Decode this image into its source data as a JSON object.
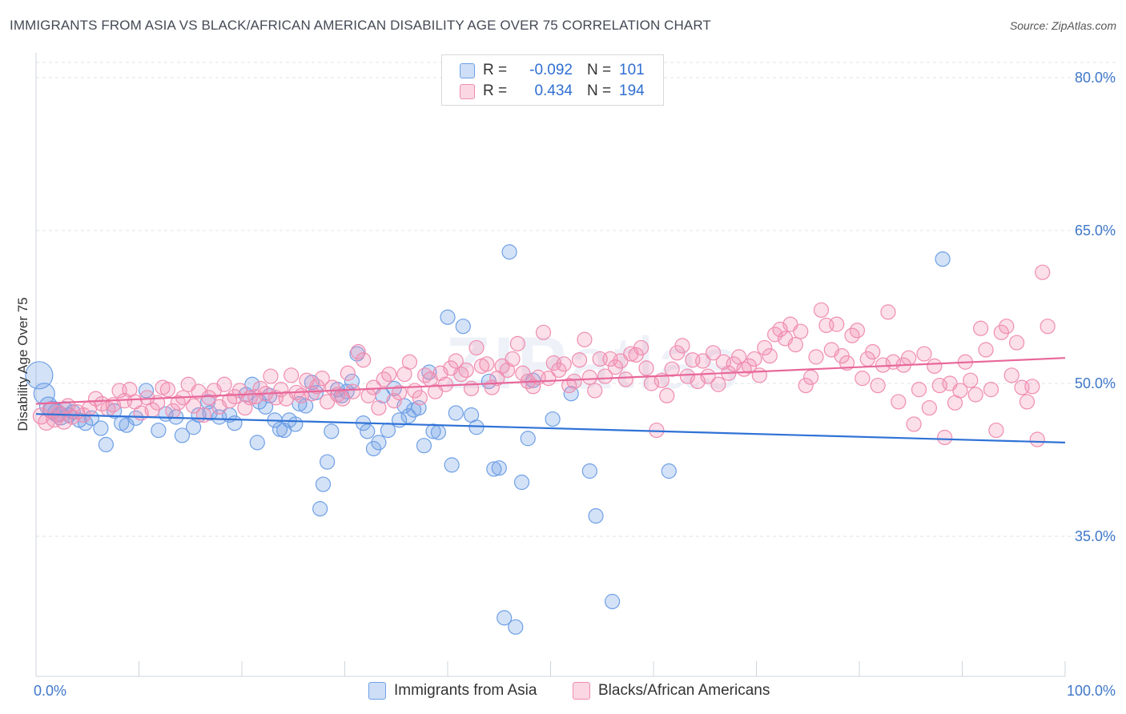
{
  "title": "IMMIGRANTS FROM ASIA VS BLACK/AFRICAN AMERICAN DISABILITY AGE OVER 75 CORRELATION CHART",
  "source": "Source: ZipAtlas.com",
  "watermark": {
    "zip": "ZIP",
    "atlas": "atlas"
  },
  "stats": {
    "r_label": "R =",
    "n_label": "N =",
    "rows": [
      {
        "r": "-0.092",
        "n": "101",
        "color": "#6fa0e6"
      },
      {
        "r": "0.434",
        "n": "194",
        "color": "#f08db0"
      }
    ]
  },
  "legend": [
    {
      "label": "Immigrants from Asia",
      "color": "#6fa0e6"
    },
    {
      "label": "Blacks/African Americans",
      "color": "#f08db0"
    }
  ],
  "chart_data": {
    "type": "scatter",
    "xlabel": "",
    "ylabel": "Disability Age Over 75",
    "xlim": [
      0,
      100
    ],
    "ylim": [
      20,
      82
    ],
    "x_tick_labels": [
      "0.0%",
      "100.0%"
    ],
    "y_ticks": [
      35,
      50,
      65,
      80
    ],
    "y_tick_labels": [
      "35.0%",
      "50.0%",
      "65.0%",
      "80.0%"
    ],
    "grid": "horizontal dashed",
    "series": [
      {
        "name": "Immigrants from Asia",
        "color": "#6fa0e6",
        "trend": [
          [
            0,
            47.0
          ],
          [
            100,
            44.2
          ]
        ],
        "points": [
          [
            0.3,
            50.8
          ],
          [
            0.8,
            49.0
          ],
          [
            1.2,
            47.8
          ],
          [
            1.6,
            47.4
          ],
          [
            2.0,
            47.1
          ],
          [
            2.4,
            46.8
          ],
          [
            2.8,
            47.5
          ],
          [
            3.2,
            46.9
          ],
          [
            3.6,
            47.2
          ],
          [
            4.2,
            46.4
          ],
          [
            4.8,
            46.1
          ],
          [
            5.4,
            46.6
          ],
          [
            6.3,
            45.6
          ],
          [
            6.8,
            44.0
          ],
          [
            7.6,
            47.3
          ],
          [
            8.3,
            46.1
          ],
          [
            8.8,
            45.9
          ],
          [
            9.7,
            46.6
          ],
          [
            10.7,
            49.3
          ],
          [
            11.9,
            45.4
          ],
          [
            12.6,
            47.0
          ],
          [
            13.6,
            46.7
          ],
          [
            14.2,
            44.9
          ],
          [
            15.3,
            45.7
          ],
          [
            15.8,
            46.9
          ],
          [
            16.7,
            48.2
          ],
          [
            16.9,
            47.1
          ],
          [
            17.8,
            46.7
          ],
          [
            18.8,
            46.9
          ],
          [
            19.3,
            46.1
          ],
          [
            20.4,
            48.9
          ],
          [
            21.0,
            49.9
          ],
          [
            21.5,
            44.2
          ],
          [
            21.7,
            48.2
          ],
          [
            22.3,
            47.7
          ],
          [
            22.7,
            48.8
          ],
          [
            23.2,
            46.4
          ],
          [
            23.7,
            45.5
          ],
          [
            24.1,
            45.4
          ],
          [
            24.6,
            46.4
          ],
          [
            25.2,
            46.0
          ],
          [
            25.6,
            48.0
          ],
          [
            26.2,
            47.8
          ],
          [
            26.8,
            50.1
          ],
          [
            27.2,
            49.1
          ],
          [
            27.6,
            37.7
          ],
          [
            27.9,
            40.1
          ],
          [
            28.3,
            42.3
          ],
          [
            28.7,
            45.3
          ],
          [
            29.3,
            49.4
          ],
          [
            29.7,
            48.8
          ],
          [
            30.2,
            49.2
          ],
          [
            30.7,
            50.2
          ],
          [
            31.2,
            52.9
          ],
          [
            31.8,
            46.1
          ],
          [
            32.2,
            45.3
          ],
          [
            32.8,
            43.6
          ],
          [
            33.3,
            44.2
          ],
          [
            33.7,
            48.8
          ],
          [
            34.2,
            45.4
          ],
          [
            34.8,
            49.5
          ],
          [
            35.3,
            46.4
          ],
          [
            35.8,
            47.8
          ],
          [
            36.2,
            46.8
          ],
          [
            36.7,
            47.4
          ],
          [
            37.2,
            47.6
          ],
          [
            37.7,
            43.9
          ],
          [
            38.2,
            51.1
          ],
          [
            38.6,
            45.3
          ],
          [
            39.1,
            45.2
          ],
          [
            40.0,
            56.5
          ],
          [
            40.4,
            42.0
          ],
          [
            40.8,
            47.1
          ],
          [
            41.5,
            55.6
          ],
          [
            42.3,
            46.9
          ],
          [
            42.8,
            45.7
          ],
          [
            44.0,
            50.2
          ],
          [
            44.5,
            41.6
          ],
          [
            45.0,
            41.7
          ],
          [
            45.5,
            27.0
          ],
          [
            46.0,
            62.9
          ],
          [
            46.6,
            26.1
          ],
          [
            47.2,
            40.3
          ],
          [
            47.8,
            44.6
          ],
          [
            48.3,
            50.3
          ],
          [
            50.2,
            46.5
          ],
          [
            52.0,
            49.0
          ],
          [
            53.8,
            41.4
          ],
          [
            54.4,
            37.0
          ],
          [
            56.0,
            28.6
          ],
          [
            61.5,
            41.4
          ],
          [
            88.1,
            62.2
          ]
        ]
      },
      {
        "name": "Blacks/African Americans",
        "color": "#f08db0",
        "trend": [
          [
            0,
            48.0
          ],
          [
            100,
            52.5
          ]
        ],
        "points": [
          [
            0.5,
            46.8
          ],
          [
            1.0,
            46.2
          ],
          [
            1.4,
            47.4
          ],
          [
            1.8,
            46.5
          ],
          [
            2.2,
            47.0
          ],
          [
            2.7,
            46.3
          ],
          [
            3.1,
            47.8
          ],
          [
            3.5,
            46.7
          ],
          [
            4.0,
            47.2
          ],
          [
            4.6,
            46.9
          ],
          [
            5.2,
            47.6
          ],
          [
            5.8,
            48.5
          ],
          [
            6.4,
            48.0
          ],
          [
            7.0,
            47.5
          ],
          [
            7.5,
            47.9
          ],
          [
            8.1,
            49.3
          ],
          [
            8.6,
            48.3
          ],
          [
            9.1,
            49.4
          ],
          [
            9.6,
            48.2
          ],
          [
            10.2,
            47.1
          ],
          [
            10.8,
            48.6
          ],
          [
            11.3,
            47.4
          ],
          [
            11.8,
            48.1
          ],
          [
            12.3,
            49.6
          ],
          [
            12.8,
            49.4
          ],
          [
            13.3,
            47.3
          ],
          [
            13.8,
            48.1
          ],
          [
            14.3,
            48.6
          ],
          [
            14.8,
            49.9
          ],
          [
            15.3,
            47.8
          ],
          [
            15.8,
            49.2
          ],
          [
            16.3,
            46.9
          ],
          [
            16.8,
            48.6
          ],
          [
            17.3,
            49.3
          ],
          [
            17.8,
            47.7
          ],
          [
            18.3,
            49.9
          ],
          [
            18.8,
            48.3
          ],
          [
            19.3,
            48.7
          ],
          [
            19.8,
            49.3
          ],
          [
            20.3,
            47.6
          ],
          [
            20.8,
            48.6
          ],
          [
            21.3,
            48.7
          ],
          [
            21.8,
            49.5
          ],
          [
            22.3,
            49.0
          ],
          [
            22.8,
            50.7
          ],
          [
            23.3,
            48.6
          ],
          [
            23.8,
            49.4
          ],
          [
            24.3,
            48.5
          ],
          [
            24.8,
            50.8
          ],
          [
            25.3,
            49.1
          ],
          [
            25.8,
            48.8
          ],
          [
            26.3,
            50.3
          ],
          [
            26.8,
            49.0
          ],
          [
            27.3,
            49.7
          ],
          [
            27.8,
            50.5
          ],
          [
            28.3,
            48.2
          ],
          [
            28.8,
            49.6
          ],
          [
            29.3,
            48.9
          ],
          [
            29.8,
            48.5
          ],
          [
            30.3,
            51.0
          ],
          [
            30.8,
            49.2
          ],
          [
            31.3,
            53.1
          ],
          [
            31.8,
            52.3
          ],
          [
            32.3,
            48.8
          ],
          [
            32.8,
            49.6
          ],
          [
            33.3,
            47.6
          ],
          [
            33.8,
            50.4
          ],
          [
            34.3,
            50.9
          ],
          [
            34.8,
            48.3
          ],
          [
            35.3,
            49.1
          ],
          [
            35.8,
            50.9
          ],
          [
            36.3,
            52.1
          ],
          [
            36.8,
            49.3
          ],
          [
            37.3,
            48.6
          ],
          [
            37.8,
            50.8
          ],
          [
            38.3,
            50.4
          ],
          [
            38.8,
            49.2
          ],
          [
            39.3,
            51.0
          ],
          [
            39.8,
            49.9
          ],
          [
            40.3,
            51.5
          ],
          [
            40.8,
            52.2
          ],
          [
            41.3,
            50.9
          ],
          [
            41.8,
            51.3
          ],
          [
            42.3,
            49.5
          ],
          [
            42.8,
            53.5
          ],
          [
            43.3,
            51.7
          ],
          [
            43.8,
            51.9
          ],
          [
            44.3,
            49.6
          ],
          [
            44.8,
            50.5
          ],
          [
            45.3,
            51.7
          ],
          [
            45.8,
            51.3
          ],
          [
            46.3,
            52.4
          ],
          [
            46.8,
            53.9
          ],
          [
            47.3,
            51.0
          ],
          [
            47.8,
            50.2
          ],
          [
            48.3,
            49.7
          ],
          [
            48.8,
            50.6
          ],
          [
            49.3,
            55.0
          ],
          [
            49.8,
            50.5
          ],
          [
            50.3,
            52.0
          ],
          [
            50.8,
            51.3
          ],
          [
            51.3,
            51.9
          ],
          [
            51.8,
            49.8
          ],
          [
            52.3,
            50.2
          ],
          [
            52.8,
            52.3
          ],
          [
            53.3,
            54.3
          ],
          [
            53.8,
            50.6
          ],
          [
            54.3,
            49.3
          ],
          [
            54.8,
            52.4
          ],
          [
            55.3,
            50.7
          ],
          [
            55.8,
            52.4
          ],
          [
            56.3,
            51.6
          ],
          [
            56.8,
            52.2
          ],
          [
            57.3,
            50.4
          ],
          [
            57.8,
            52.9
          ],
          [
            58.3,
            52.8
          ],
          [
            58.8,
            53.5
          ],
          [
            59.3,
            51.5
          ],
          [
            59.8,
            50.0
          ],
          [
            60.3,
            45.4
          ],
          [
            60.8,
            50.3
          ],
          [
            61.3,
            48.8
          ],
          [
            61.8,
            51.4
          ],
          [
            62.3,
            53.0
          ],
          [
            62.8,
            53.7
          ],
          [
            63.3,
            50.7
          ],
          [
            63.8,
            52.3
          ],
          [
            64.3,
            50.2
          ],
          [
            64.8,
            52.2
          ],
          [
            65.3,
            50.7
          ],
          [
            65.8,
            53.0
          ],
          [
            66.3,
            49.9
          ],
          [
            66.8,
            52.1
          ],
          [
            67.3,
            51.0
          ],
          [
            67.8,
            51.9
          ],
          [
            68.3,
            52.6
          ],
          [
            68.8,
            51.4
          ],
          [
            69.3,
            51.7
          ],
          [
            69.8,
            52.4
          ],
          [
            70.3,
            50.8
          ],
          [
            70.8,
            53.5
          ],
          [
            71.3,
            52.7
          ],
          [
            71.8,
            54.8
          ],
          [
            72.3,
            55.3
          ],
          [
            72.8,
            54.4
          ],
          [
            73.3,
            55.8
          ],
          [
            73.8,
            53.8
          ],
          [
            74.3,
            55.1
          ],
          [
            74.8,
            49.8
          ],
          [
            75.3,
            50.6
          ],
          [
            75.8,
            52.6
          ],
          [
            76.3,
            57.2
          ],
          [
            76.8,
            55.7
          ],
          [
            77.3,
            53.3
          ],
          [
            77.8,
            55.8
          ],
          [
            78.3,
            52.7
          ],
          [
            78.8,
            52.0
          ],
          [
            79.3,
            54.7
          ],
          [
            79.8,
            55.2
          ],
          [
            80.3,
            50.5
          ],
          [
            80.8,
            52.4
          ],
          [
            81.3,
            53.1
          ],
          [
            81.8,
            49.8
          ],
          [
            82.3,
            51.8
          ],
          [
            82.8,
            57.0
          ],
          [
            83.3,
            52.1
          ],
          [
            83.8,
            48.2
          ],
          [
            84.3,
            51.8
          ],
          [
            84.8,
            52.5
          ],
          [
            85.3,
            46.0
          ],
          [
            85.8,
            49.4
          ],
          [
            86.3,
            52.9
          ],
          [
            86.8,
            47.6
          ],
          [
            87.3,
            51.7
          ],
          [
            87.8,
            49.8
          ],
          [
            88.3,
            44.7
          ],
          [
            88.8,
            50.0
          ],
          [
            89.3,
            48.1
          ],
          [
            89.8,
            49.3
          ],
          [
            90.3,
            52.1
          ],
          [
            90.8,
            50.3
          ],
          [
            91.3,
            48.9
          ],
          [
            91.8,
            55.4
          ],
          [
            92.3,
            53.3
          ],
          [
            92.8,
            49.4
          ],
          [
            93.3,
            45.4
          ],
          [
            93.8,
            55.0
          ],
          [
            94.3,
            55.6
          ],
          [
            94.8,
            50.8
          ],
          [
            95.3,
            54.0
          ],
          [
            95.8,
            49.6
          ],
          [
            96.3,
            48.2
          ],
          [
            96.8,
            49.7
          ],
          [
            97.3,
            44.5
          ],
          [
            97.8,
            60.9
          ],
          [
            98.3,
            55.6
          ]
        ]
      }
    ]
  }
}
